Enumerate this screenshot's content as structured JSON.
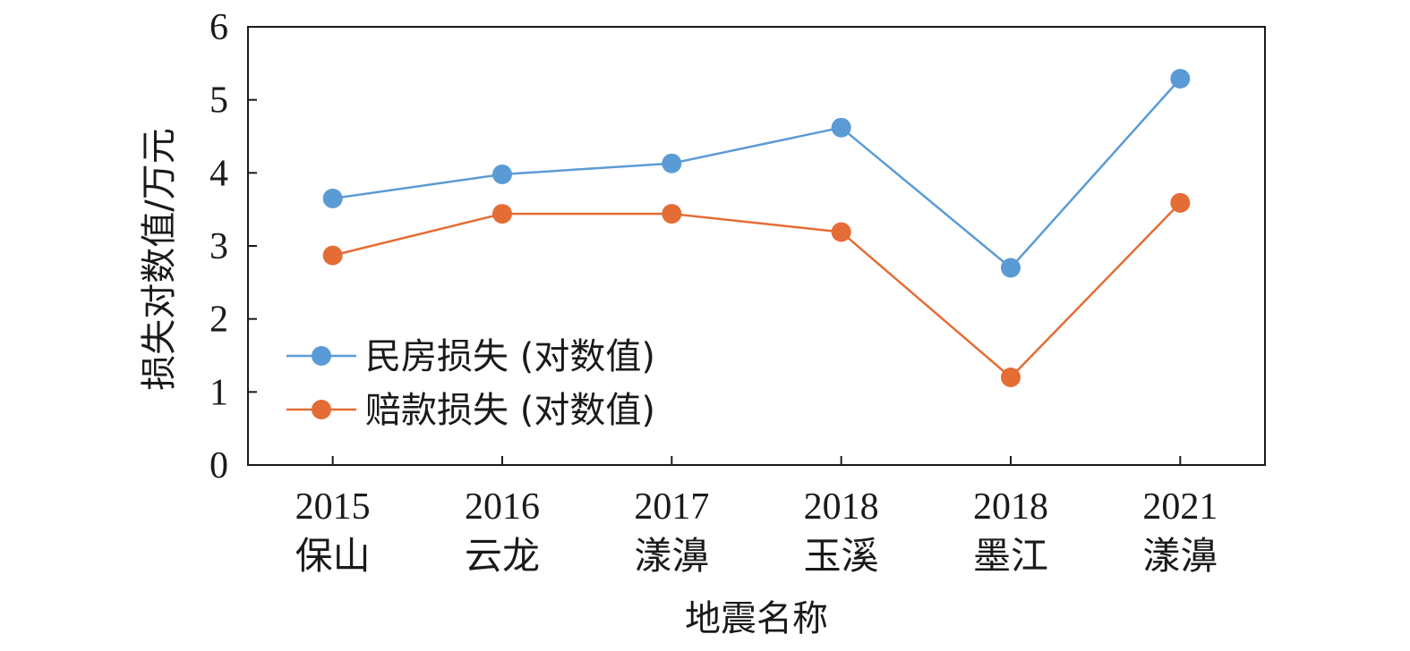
{
  "chart_data": {
    "type": "line",
    "categories": [
      [
        "2015",
        "保山"
      ],
      [
        "2016",
        "云龙"
      ],
      [
        "2017",
        "漾濞"
      ],
      [
        "2018",
        "玉溪"
      ],
      [
        "2018",
        "墨江"
      ],
      [
        "2021",
        "漾濞"
      ]
    ],
    "series": [
      {
        "name": "民房损失 (对数值)",
        "color": "#5b9bd5",
        "values": [
          3.65,
          3.98,
          4.13,
          4.62,
          2.7,
          5.29
        ]
      },
      {
        "name": "赔款损失 (对数值)",
        "color": "#e46c35",
        "values": [
          2.87,
          3.44,
          3.44,
          3.19,
          1.2,
          3.59
        ]
      }
    ],
    "xlabel": "地震名称",
    "ylabel": "损失对数值/万元",
    "ylim": [
      0,
      6
    ],
    "yticks": [
      "0",
      "1",
      "2",
      "3",
      "4",
      "5",
      "6"
    ],
    "grid": false,
    "legend_position": "left"
  }
}
